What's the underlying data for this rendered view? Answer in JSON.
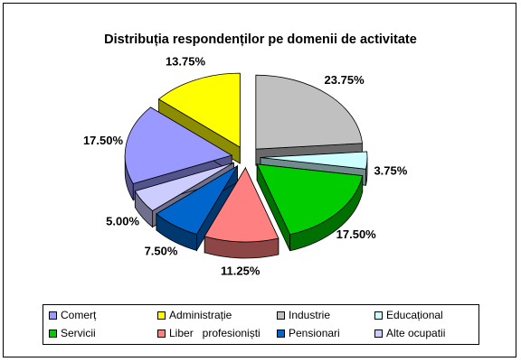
{
  "chart_data": {
    "type": "pie",
    "title": "Distribuția respondenților pe domenii de activitate",
    "categories": [
      "Comerț",
      "Administrație",
      "Industrie",
      "Educațional",
      "Servicii",
      "Liber   profesioniști",
      "Pensionari",
      "Alte ocupatii"
    ],
    "values": [
      17.5,
      13.75,
      23.75,
      3.75,
      17.5,
      11.25,
      7.5,
      5.0
    ],
    "data_labels": [
      "17.50%",
      "13.75%",
      "23.75%",
      "3.75%",
      "17.50%",
      "11.25%",
      "7.50%",
      "5.00%"
    ],
    "colors": [
      "#9999ff",
      "#ffff00",
      "#c0c0c0",
      "#ccffff",
      "#00cc00",
      "#ff8080",
      "#0066cc",
      "#ccccff"
    ],
    "style": "3d-exploded",
    "legend_position": "bottom"
  }
}
